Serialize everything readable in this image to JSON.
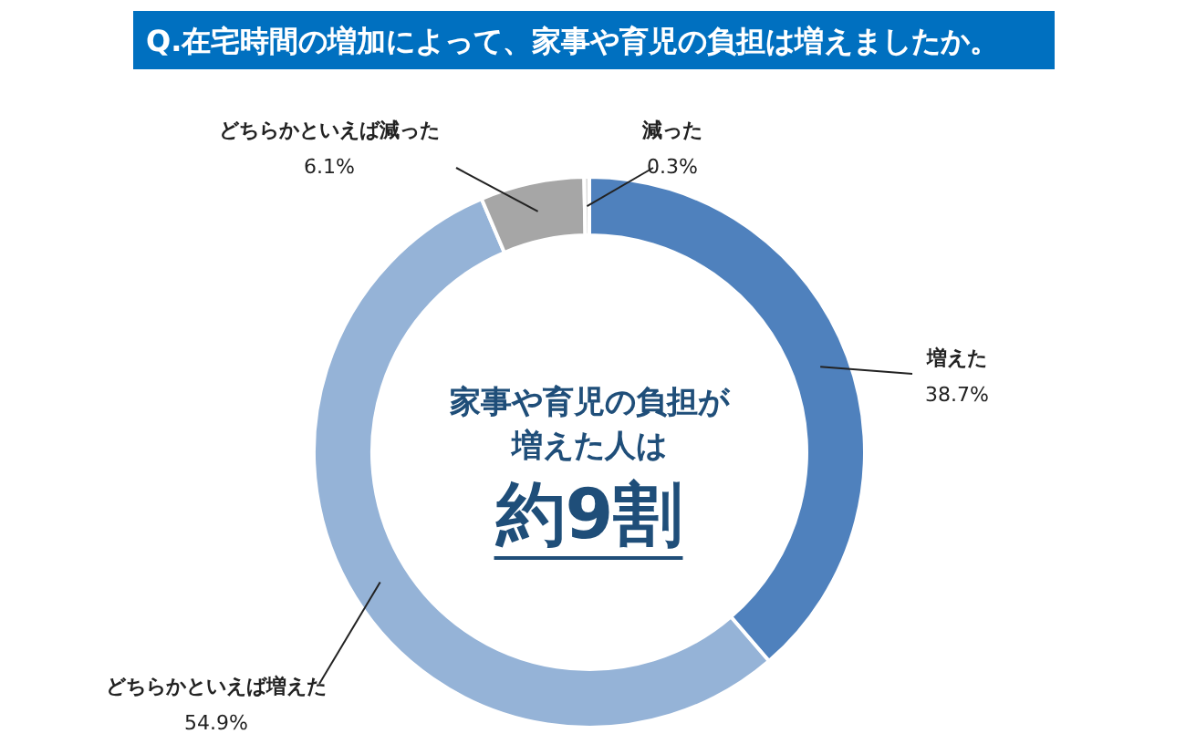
{
  "chart_data": {
    "type": "donut",
    "title": "Q.在宅時間の増加によって、家事や育児の負担は増えましたか。",
    "categories": [
      "増えた",
      "どちらかといえば増えた",
      "どちらかといえば減った",
      "減った"
    ],
    "values": [
      38.7,
      54.9,
      6.1,
      0.3
    ],
    "colors": [
      "#4f81bd",
      "#95b3d7",
      "#a6a6a6",
      "#d9d9d9"
    ],
    "value_labels": [
      "38.7%",
      "54.9%",
      "6.1%",
      "0.3%"
    ],
    "annotations": [
      "家事や育児の負担が",
      "増えた人は",
      "約9割"
    ],
    "legend": false
  }
}
